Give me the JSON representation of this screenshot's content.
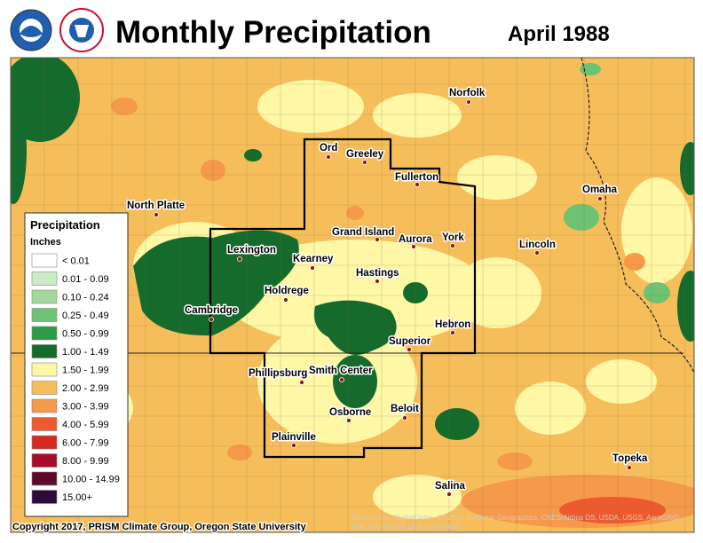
{
  "header": {
    "title": "Monthly Precipitation",
    "date": "April 1988"
  },
  "cities": [
    "Norfolk",
    "Ord",
    "Greeley",
    "Fullerton",
    "North Platte",
    "Omaha",
    "Grand Island",
    "Aurora",
    "York",
    "Lincoln",
    "Lexington",
    "Kearney",
    "Hastings",
    "Holdrege",
    "Cambridge",
    "Hebron",
    "Superior",
    "Phillipsburg",
    "Smith Center",
    "Beloit",
    "Osborne",
    "Plainville",
    "Salina",
    "Topeka"
  ],
  "legend": {
    "title": "Precipitation",
    "units": "Inches",
    "items": [
      {
        "label": "< 0.01",
        "color": "#ffffff"
      },
      {
        "label": "0.01 - 0.09",
        "color": "#c9ecc4"
      },
      {
        "label": "0.10 - 0.24",
        "color": "#a2d99b"
      },
      {
        "label": "0.25 - 0.49",
        "color": "#6ec273"
      },
      {
        "label": "0.50 - 0.99",
        "color": "#2f9b49"
      },
      {
        "label": "1.00 - 1.49",
        "color": "#146b2b"
      },
      {
        "label": "1.50 - 1.99",
        "color": "#fdf7a6"
      },
      {
        "label": "2.00 - 2.99",
        "color": "#f6be5b"
      },
      {
        "label": "3.00 - 3.99",
        "color": "#f5994a"
      },
      {
        "label": "4.00 - 5.99",
        "color": "#ec5a2e"
      },
      {
        "label": "6.00 - 7.99",
        "color": "#d42a22"
      },
      {
        "label": "8.00 - 9.99",
        "color": "#a80c2a"
      },
      {
        "label": "10.00 - 14.99",
        "color": "#5e0a2a"
      },
      {
        "label": "15.00+",
        "color": "#2e0a3a"
      }
    ]
  },
  "footer": {
    "copyright": "Copyright 2017, PRISM Climate Group, Oregon State University",
    "source_line1": "Source: Esri, DigitalGlobe, GeoEye, Earthstar Geographics, CNES/Airbus DS, USDA, USGS, AeroGRID,",
    "source_line2": "IGN, and the GIS User Community"
  }
}
